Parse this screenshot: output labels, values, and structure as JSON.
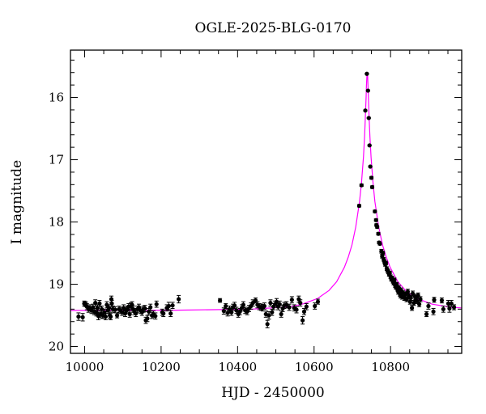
{
  "chart_data": {
    "type": "scatter",
    "title": "OGLE-2025-BLG-0170",
    "xlabel": "HJD - 2450000",
    "ylabel": "I magnitude",
    "xlim": [
      9963,
      10986
    ],
    "ylim": [
      15.24,
      20.11
    ],
    "y_inverted": true,
    "grid": false,
    "x_ticks": [
      10000,
      10200,
      10400,
      10600,
      10800
    ],
    "x_tick_labels": [
      "10000",
      "10200",
      "10400",
      "10600",
      "10800"
    ],
    "x_minor_step": 50,
    "y_ticks": [
      16,
      17,
      18,
      19,
      20
    ],
    "y_tick_labels": [
      "16",
      "17",
      "18",
      "19",
      "20"
    ],
    "y_minor_step": 0.2,
    "colors": {
      "points": "#000000",
      "model": "#ff00ff",
      "axes": "#000000"
    },
    "observations": {
      "columns": [
        "hjd",
        "mag",
        "err"
      ],
      "points": [
        [
          9984,
          19.52,
          0.06
        ],
        [
          9995,
          19.53,
          0.06
        ],
        [
          9999,
          19.31,
          0.04
        ],
        [
          10003,
          19.32,
          0.04
        ],
        [
          10006,
          19.36,
          0.05
        ],
        [
          10010,
          19.4,
          0.05
        ],
        [
          10014,
          19.38,
          0.05
        ],
        [
          10018,
          19.42,
          0.05
        ],
        [
          10022,
          19.37,
          0.05
        ],
        [
          10025,
          19.44,
          0.05
        ],
        [
          10028,
          19.3,
          0.05
        ],
        [
          10031,
          19.46,
          0.05
        ],
        [
          10034,
          19.38,
          0.05
        ],
        [
          10036,
          19.51,
          0.06
        ],
        [
          10039,
          19.31,
          0.05
        ],
        [
          10042,
          19.48,
          0.06
        ],
        [
          10045,
          19.4,
          0.05
        ],
        [
          10048,
          19.5,
          0.05
        ],
        [
          10052,
          19.45,
          0.05
        ],
        [
          10055,
          19.52,
          0.05
        ],
        [
          10058,
          19.33,
          0.05
        ],
        [
          10061,
          19.42,
          0.05
        ],
        [
          10064,
          19.38,
          0.05
        ],
        [
          10066,
          19.5,
          0.05
        ],
        [
          10068,
          19.52,
          0.05
        ],
        [
          10070,
          19.24,
          0.05
        ],
        [
          10071,
          19.31,
          0.05
        ],
        [
          10074,
          19.4,
          0.05
        ],
        [
          10080,
          19.41,
          0.05
        ],
        [
          10085,
          19.5,
          0.04
        ],
        [
          10090,
          19.4,
          0.05
        ],
        [
          10094,
          19.42,
          0.05
        ],
        [
          10098,
          19.45,
          0.05
        ],
        [
          10102,
          19.38,
          0.05
        ],
        [
          10106,
          19.47,
          0.05
        ],
        [
          10109,
          19.42,
          0.05
        ],
        [
          10112,
          19.4,
          0.05
        ],
        [
          10115,
          19.36,
          0.05
        ],
        [
          10118,
          19.48,
          0.05
        ],
        [
          10121,
          19.35,
          0.05
        ],
        [
          10124,
          19.33,
          0.05
        ],
        [
          10127,
          19.4,
          0.05
        ],
        [
          10130,
          19.44,
          0.05
        ],
        [
          10134,
          19.47,
          0.05
        ],
        [
          10138,
          19.4,
          0.05
        ],
        [
          10142,
          19.37,
          0.05
        ],
        [
          10146,
          19.42,
          0.05
        ],
        [
          10150,
          19.45,
          0.05
        ],
        [
          10154,
          19.4,
          0.05
        ],
        [
          10158,
          19.39,
          0.05
        ],
        [
          10160,
          19.58,
          0.05
        ],
        [
          10164,
          19.55,
          0.05
        ],
        [
          10168,
          19.44,
          0.05
        ],
        [
          10172,
          19.37,
          0.05
        ],
        [
          10176,
          19.5,
          0.05
        ],
        [
          10180,
          19.48,
          0.05
        ],
        [
          10185,
          19.51,
          0.05
        ],
        [
          10188,
          19.32,
          0.05
        ],
        [
          10203,
          19.45,
          0.05
        ],
        [
          10206,
          19.47,
          0.05
        ],
        [
          10215,
          19.38,
          0.05
        ],
        [
          10220,
          19.35,
          0.06
        ],
        [
          10225,
          19.47,
          0.05
        ],
        [
          10230,
          19.34,
          0.05
        ],
        [
          10246,
          19.24,
          0.06
        ],
        [
          10354,
          19.26,
          0.03
        ],
        [
          10364,
          19.43,
          0.05
        ],
        [
          10369,
          19.35,
          0.04
        ],
        [
          10374,
          19.46,
          0.05
        ],
        [
          10379,
          19.4,
          0.05
        ],
        [
          10384,
          19.45,
          0.05
        ],
        [
          10388,
          19.37,
          0.05
        ],
        [
          10392,
          19.34,
          0.05
        ],
        [
          10397,
          19.42,
          0.05
        ],
        [
          10402,
          19.48,
          0.05
        ],
        [
          10406,
          19.44,
          0.05
        ],
        [
          10411,
          19.38,
          0.05
        ],
        [
          10415,
          19.33,
          0.05
        ],
        [
          10420,
          19.42,
          0.05
        ],
        [
          10425,
          19.44,
          0.05
        ],
        [
          10430,
          19.39,
          0.05
        ],
        [
          10435,
          19.35,
          0.05
        ],
        [
          10440,
          19.3,
          0.05
        ],
        [
          10447,
          19.26,
          0.04
        ],
        [
          10452,
          19.33,
          0.05
        ],
        [
          10457,
          19.36,
          0.05
        ],
        [
          10462,
          19.37,
          0.05
        ],
        [
          10466,
          19.38,
          0.05
        ],
        [
          10470,
          19.35,
          0.05
        ],
        [
          10474,
          19.48,
          0.05
        ],
        [
          10478,
          19.64,
          0.06
        ],
        [
          10482,
          19.5,
          0.06
        ],
        [
          10486,
          19.3,
          0.05
        ],
        [
          10490,
          19.45,
          0.05
        ],
        [
          10494,
          19.36,
          0.05
        ],
        [
          10498,
          19.32,
          0.05
        ],
        [
          10502,
          19.28,
          0.05
        ],
        [
          10506,
          19.36,
          0.05
        ],
        [
          10510,
          19.32,
          0.05
        ],
        [
          10514,
          19.48,
          0.05
        ],
        [
          10518,
          19.39,
          0.05
        ],
        [
          10522,
          19.34,
          0.05
        ],
        [
          10528,
          19.33,
          0.05
        ],
        [
          10535,
          19.37,
          0.05
        ],
        [
          10542,
          19.25,
          0.05
        ],
        [
          10548,
          19.38,
          0.05
        ],
        [
          10554,
          19.41,
          0.05
        ],
        [
          10560,
          19.24,
          0.05
        ],
        [
          10564,
          19.3,
          0.05
        ],
        [
          10570,
          19.58,
          0.06
        ],
        [
          10574,
          19.44,
          0.05
        ],
        [
          10580,
          19.36,
          0.05
        ],
        [
          10602,
          19.35,
          0.05
        ],
        [
          10610,
          19.28,
          0.04
        ],
        [
          10718,
          17.74,
          0.02
        ],
        [
          10724,
          17.41,
          0.02
        ],
        [
          10734,
          16.21,
          0.01
        ],
        [
          10738,
          15.62,
          0.01
        ],
        [
          10741,
          15.89,
          0.01
        ],
        [
          10743,
          16.33,
          0.01
        ],
        [
          10745,
          16.77,
          0.01
        ],
        [
          10747,
          17.11,
          0.01
        ],
        [
          10750,
          17.29,
          0.02
        ],
        [
          10752,
          17.44,
          0.02
        ],
        [
          10759,
          17.83,
          0.02
        ],
        [
          10762,
          17.97,
          0.02
        ],
        [
          10763,
          18.05,
          0.02
        ],
        [
          10765,
          18.08,
          0.02
        ],
        [
          10768,
          18.19,
          0.02
        ],
        [
          10770,
          18.33,
          0.02
        ],
        [
          10772,
          18.35,
          0.02
        ],
        [
          10776,
          18.47,
          0.03
        ],
        [
          10778,
          18.55,
          0.03
        ],
        [
          10780,
          18.5,
          0.03
        ],
        [
          10782,
          18.6,
          0.03
        ],
        [
          10784,
          18.64,
          0.03
        ],
        [
          10786,
          18.68,
          0.03
        ],
        [
          10788,
          18.66,
          0.03
        ],
        [
          10790,
          18.75,
          0.03
        ],
        [
          10792,
          18.78,
          0.03
        ],
        [
          10794,
          18.8,
          0.03
        ],
        [
          10796,
          18.84,
          0.03
        ],
        [
          10798,
          18.82,
          0.03
        ],
        [
          10800,
          18.88,
          0.03
        ],
        [
          10802,
          18.92,
          0.03
        ],
        [
          10804,
          18.9,
          0.03
        ],
        [
          10806,
          18.95,
          0.03
        ],
        [
          10808,
          18.98,
          0.03
        ],
        [
          10810,
          18.93,
          0.03
        ],
        [
          10812,
          19.02,
          0.03
        ],
        [
          10814,
          19.05,
          0.03
        ],
        [
          10816,
          19.0,
          0.03
        ],
        [
          10818,
          19.08,
          0.03
        ],
        [
          10820,
          19.12,
          0.04
        ],
        [
          10822,
          19.06,
          0.04
        ],
        [
          10824,
          19.15,
          0.04
        ],
        [
          10826,
          19.18,
          0.04
        ],
        [
          10828,
          19.1,
          0.04
        ],
        [
          10830,
          19.2,
          0.04
        ],
        [
          10833,
          19.14,
          0.04
        ],
        [
          10836,
          19.22,
          0.04
        ],
        [
          10839,
          19.16,
          0.04
        ],
        [
          10842,
          19.24,
          0.04
        ],
        [
          10845,
          19.12,
          0.04
        ],
        [
          10848,
          19.19,
          0.04
        ],
        [
          10851,
          19.28,
          0.04
        ],
        [
          10853,
          19.22,
          0.04
        ],
        [
          10856,
          19.38,
          0.04
        ],
        [
          10858,
          19.15,
          0.04
        ],
        [
          10861,
          19.3,
          0.04
        ],
        [
          10864,
          19.2,
          0.04
        ],
        [
          10866,
          19.25,
          0.04
        ],
        [
          10869,
          19.27,
          0.04
        ],
        [
          10872,
          19.18,
          0.04
        ],
        [
          10875,
          19.32,
          0.04
        ],
        [
          10878,
          19.24,
          0.04
        ],
        [
          10894,
          19.48,
          0.04
        ],
        [
          10899,
          19.35,
          0.05
        ],
        [
          10912,
          19.44,
          0.05
        ],
        [
          10914,
          19.25,
          0.04
        ],
        [
          10934,
          19.26,
          0.04
        ],
        [
          10938,
          19.4,
          0.05
        ],
        [
          10951,
          19.31,
          0.05
        ],
        [
          10954,
          19.39,
          0.06
        ],
        [
          10959,
          19.31,
          0.05
        ],
        [
          10966,
          19.37,
          0.04
        ]
      ]
    },
    "model": {
      "x": [
        9963,
        10239,
        10439,
        10539,
        10569,
        10609,
        10639,
        10659,
        10679,
        10689,
        10699,
        10709,
        10719,
        10724,
        10729,
        10732,
        10734,
        10736,
        10737,
        10738,
        10739,
        10740,
        10741,
        10742,
        10744,
        10746,
        10749,
        10754,
        10759,
        10769,
        10779,
        10789,
        10799,
        10819,
        10839,
        10869,
        10909,
        10959,
        10986
      ],
      "y": [
        19.42,
        19.417,
        19.4,
        19.36,
        19.32,
        19.23,
        19.1,
        18.96,
        18.73,
        18.57,
        18.37,
        18.08,
        17.67,
        17.37,
        16.96,
        16.63,
        16.33,
        15.99,
        15.81,
        15.67,
        15.61,
        15.67,
        15.81,
        15.99,
        16.33,
        16.63,
        16.96,
        17.37,
        17.67,
        18.08,
        18.37,
        18.57,
        18.73,
        18.96,
        19.1,
        19.23,
        19.32,
        19.37,
        19.38
      ]
    }
  }
}
